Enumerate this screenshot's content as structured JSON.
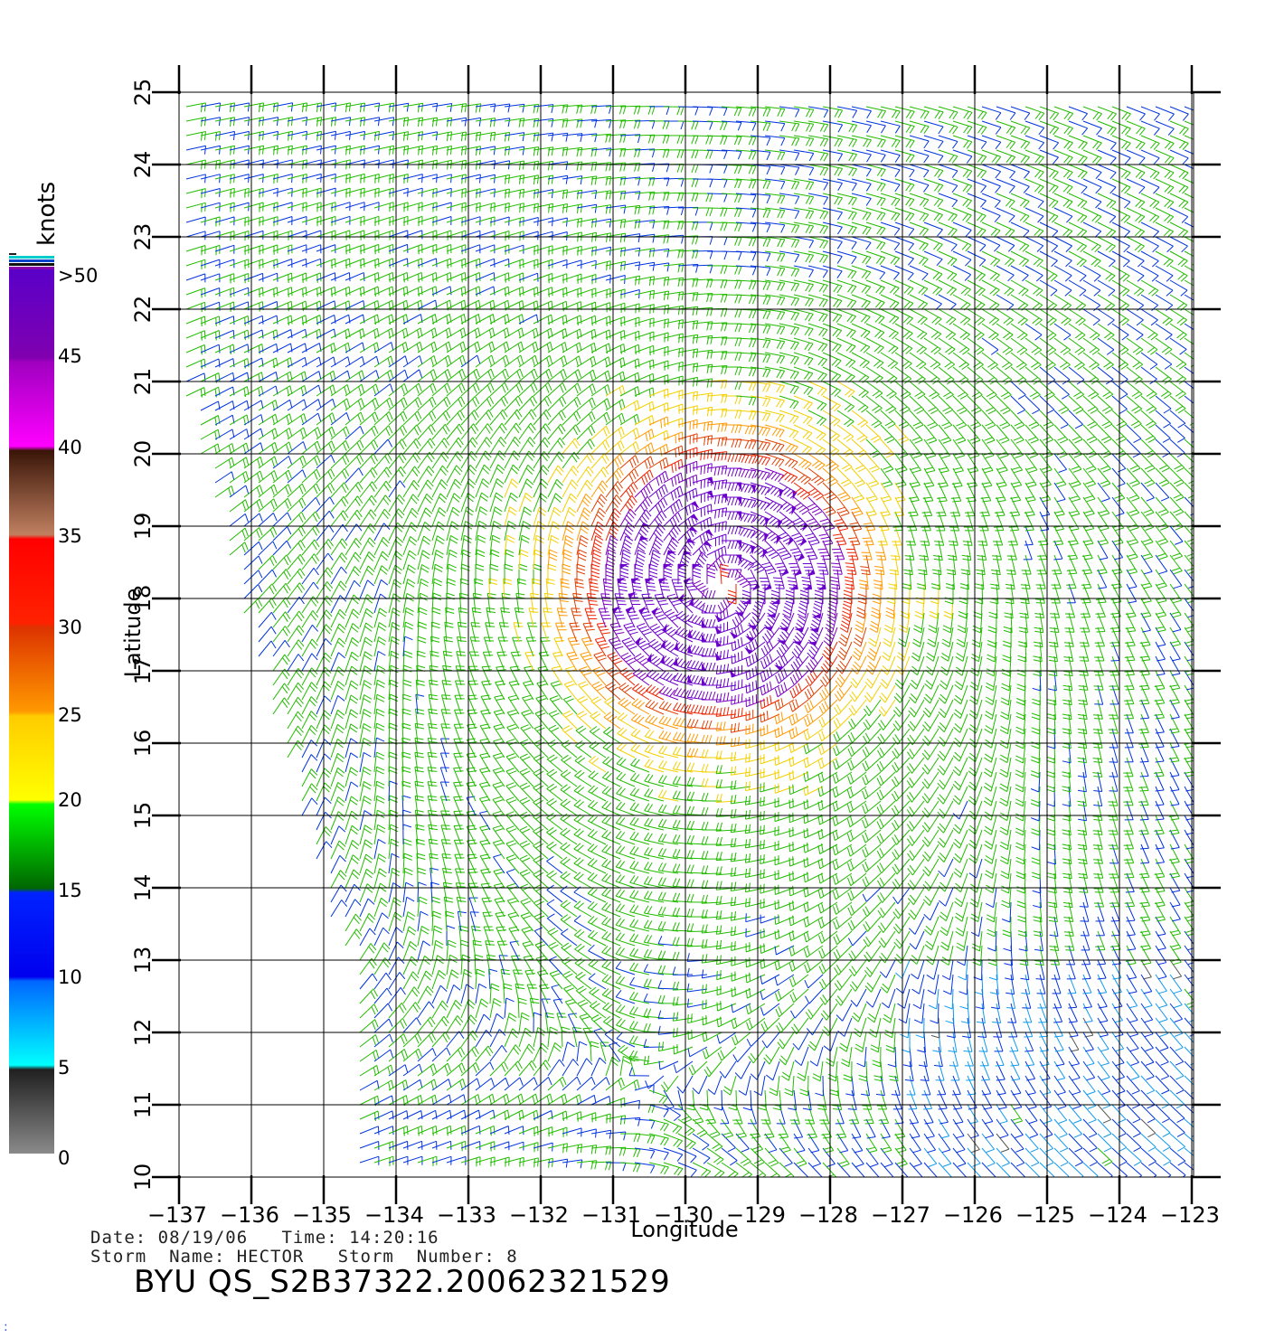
{
  "colorbar": {
    "title": "knots",
    "labels": [
      ">50",
      "45",
      "40",
      "35",
      "30",
      "25",
      "20",
      "15",
      "10",
      "5",
      "0"
    ]
  },
  "axes": {
    "xlabel": "Longitude",
    "ylabel": "Latitude",
    "xlim": [
      -137,
      -122.6
    ],
    "ylim": [
      10,
      25
    ],
    "xticks": [
      -137,
      -136,
      -135,
      -134,
      -133,
      -132,
      -131,
      -130,
      -129,
      -128,
      -127,
      -126,
      -125,
      -124,
      -123
    ],
    "yticks": [
      10,
      11,
      12,
      13,
      14,
      15,
      16,
      17,
      18,
      19,
      20,
      21,
      22,
      23,
      24,
      25
    ]
  },
  "storm": {
    "center_lon": -129.5,
    "center_lat": 18.2
  },
  "footer": {
    "date_line": "Date: 08/19/06   Time: 14:20:16",
    "storm_line": "Storm  Name: HECTOR   Storm  Number: 8",
    "product_id": "BYU  QS_S2B37322.20062321529"
  }
}
